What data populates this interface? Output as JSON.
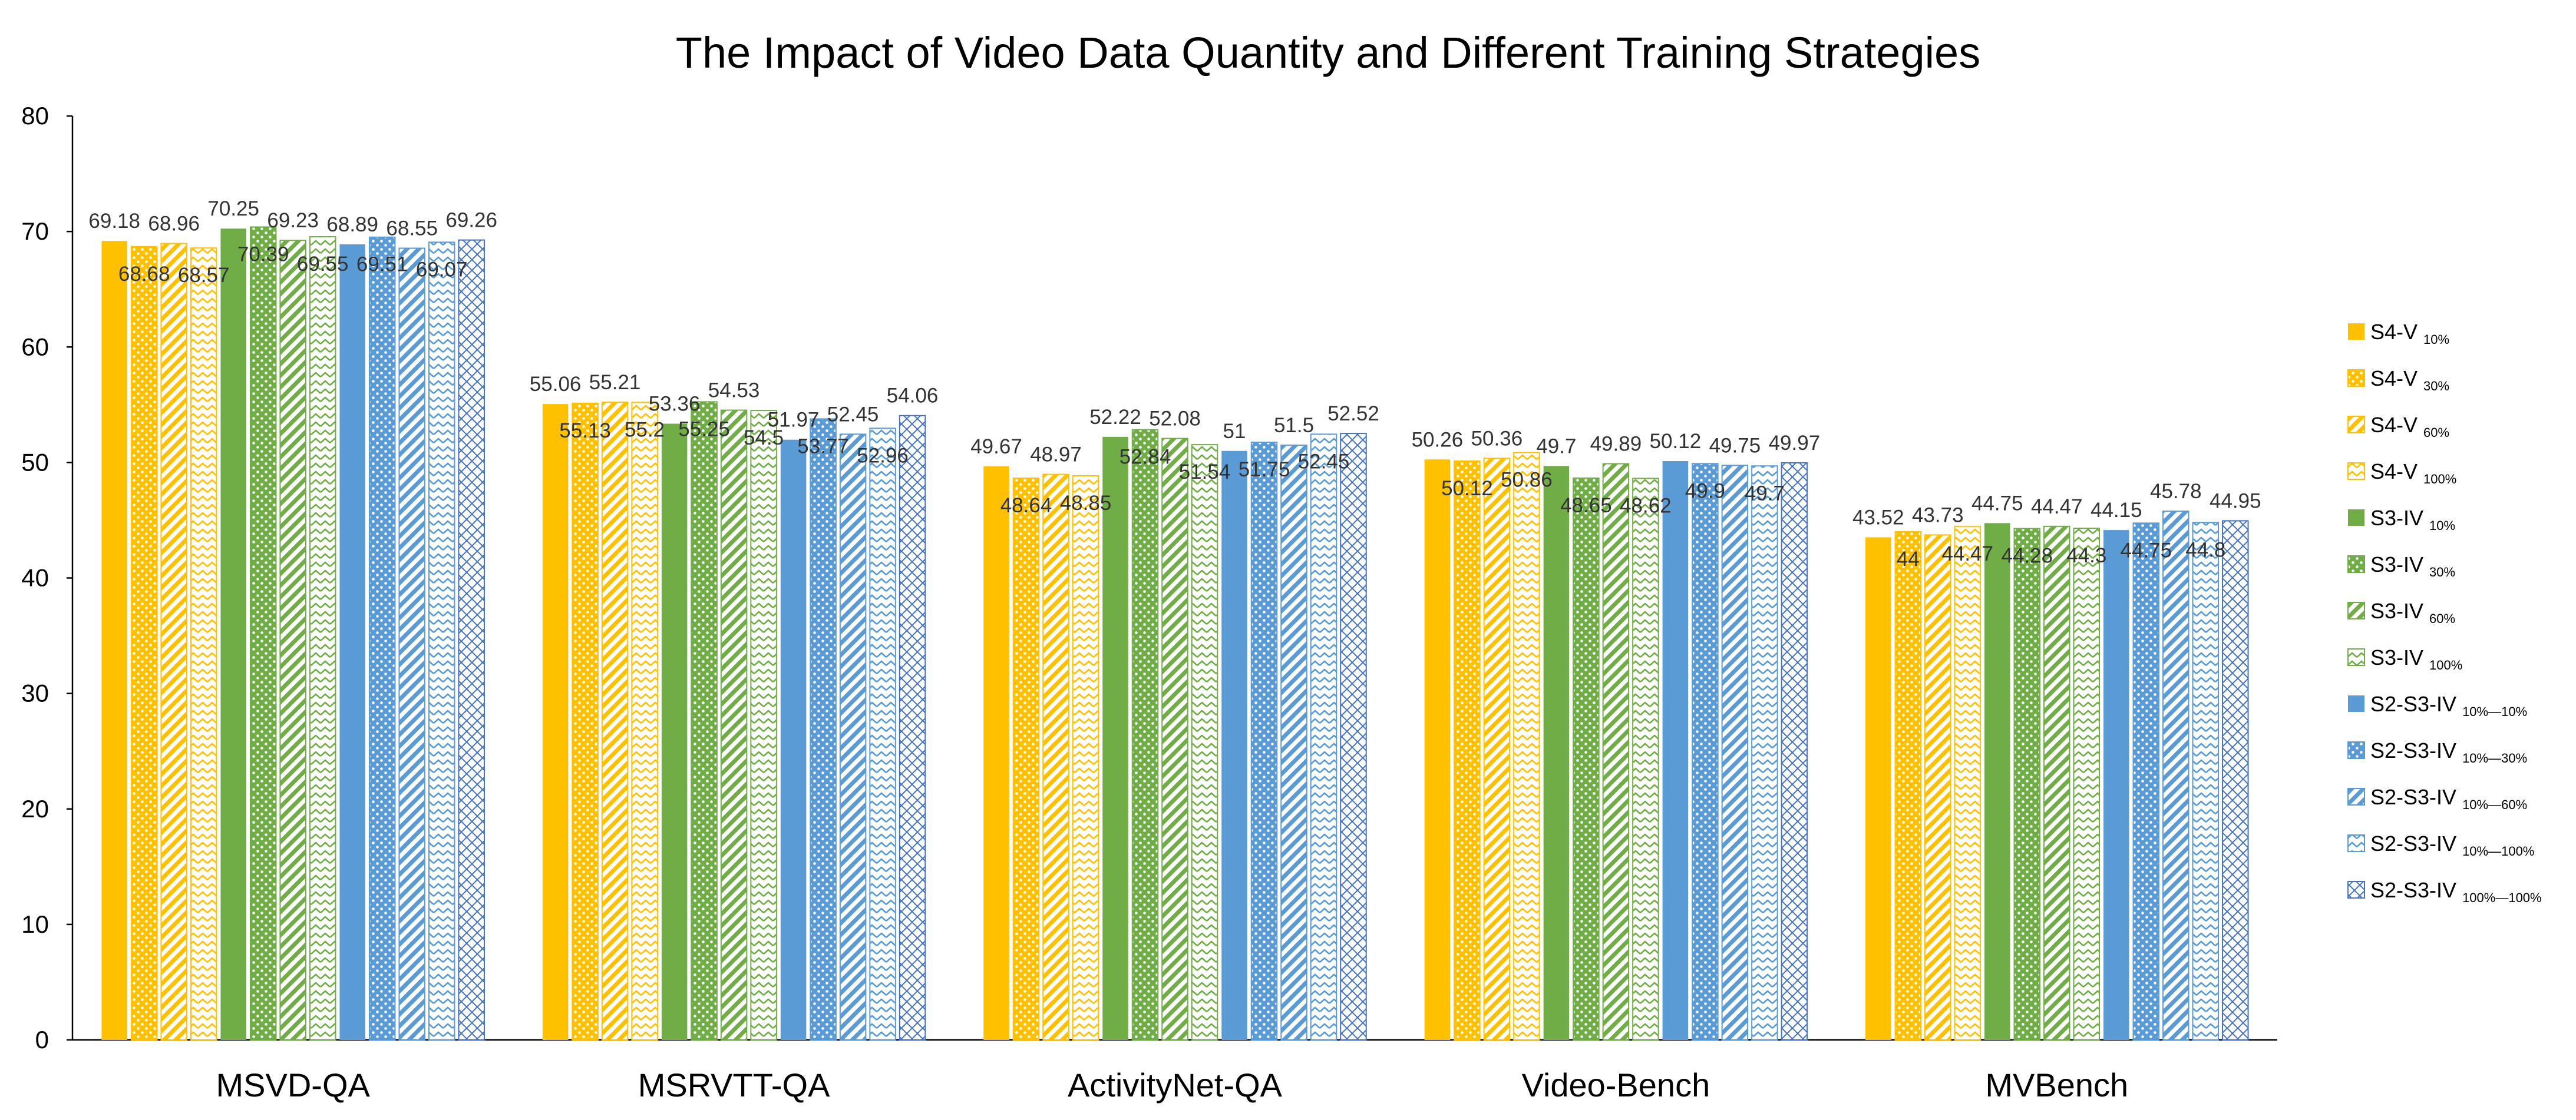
{
  "chart_data": {
    "type": "bar",
    "title": "The Impact of Video Data Quantity and Different Training Strategies",
    "xlabel": "",
    "ylabel": "",
    "ylim": [
      0,
      80
    ],
    "yticks": [
      0,
      10,
      20,
      30,
      40,
      50,
      60,
      70,
      80
    ],
    "grid": false,
    "legend_position": "right",
    "categories": [
      "MSVD-QA",
      "MSRVTT-QA",
      "ActivityNet-QA",
      "Video-Bench",
      "MVBench"
    ],
    "series": [
      {
        "name": "S4-V",
        "sub": "10%",
        "color": "#FFC000",
        "pattern": "solid",
        "values": [
          69.18,
          55.06,
          49.67,
          50.26,
          43.52
        ]
      },
      {
        "name": "S4-V",
        "sub": "30%",
        "color": "#FFC000",
        "pattern": "dots",
        "values": [
          68.68,
          55.13,
          48.64,
          50.12,
          44
        ]
      },
      {
        "name": "S4-V",
        "sub": "60%",
        "color": "#FFC000",
        "pattern": "diag",
        "values": [
          68.96,
          55.21,
          48.97,
          50.36,
          43.73
        ]
      },
      {
        "name": "S4-V",
        "sub": "100%",
        "color": "#FFC000",
        "pattern": "zigzag",
        "values": [
          68.57,
          55.2,
          48.85,
          50.86,
          44.47
        ]
      },
      {
        "name": "S3-IV",
        "sub": "10%",
        "color": "#70AD47",
        "pattern": "solid",
        "values": [
          70.25,
          53.36,
          52.22,
          49.7,
          44.75
        ]
      },
      {
        "name": "S3-IV",
        "sub": "30%",
        "color": "#70AD47",
        "pattern": "dots",
        "values": [
          70.39,
          55.25,
          52.84,
          48.65,
          44.28
        ]
      },
      {
        "name": "S3-IV",
        "sub": "60%",
        "color": "#70AD47",
        "pattern": "diag",
        "values": [
          69.23,
          54.53,
          52.08,
          49.89,
          44.47
        ]
      },
      {
        "name": "S3-IV",
        "sub": "100%",
        "color": "#70AD47",
        "pattern": "zigzag",
        "values": [
          69.55,
          54.5,
          51.54,
          48.62,
          44.3
        ]
      },
      {
        "name": "S2-S3-IV",
        "sub": "10%—10%",
        "color": "#5B9BD5",
        "pattern": "solid",
        "values": [
          68.89,
          51.97,
          51,
          50.12,
          44.15
        ]
      },
      {
        "name": "S2-S3-IV",
        "sub": "10%—30%",
        "color": "#5B9BD5",
        "pattern": "dots",
        "values": [
          69.51,
          53.77,
          51.75,
          49.9,
          44.75
        ]
      },
      {
        "name": "S2-S3-IV",
        "sub": "10%—60%",
        "color": "#5B9BD5",
        "pattern": "diag",
        "values": [
          68.55,
          52.45,
          51.5,
          49.75,
          45.78
        ]
      },
      {
        "name": "S2-S3-IV",
        "sub": "10%—100%",
        "color": "#5B9BD5",
        "pattern": "zigzag",
        "values": [
          69.07,
          52.96,
          52.45,
          49.7,
          44.8
        ]
      },
      {
        "name": "S2-S3-IV",
        "sub": "100%—100%",
        "color": "#4472C4",
        "pattern": "cross",
        "values": [
          69.26,
          54.06,
          52.52,
          49.97,
          44.95
        ]
      }
    ]
  }
}
